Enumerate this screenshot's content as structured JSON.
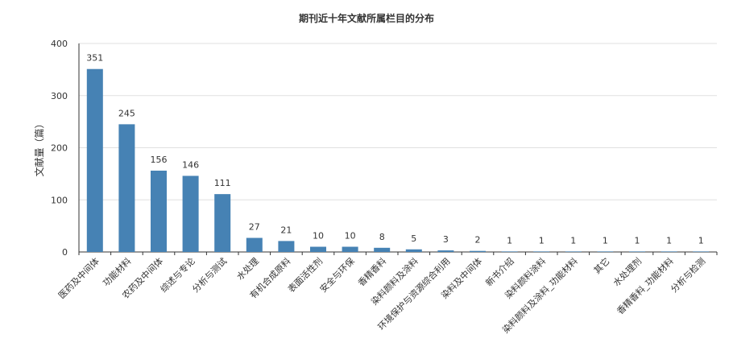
{
  "chart_data": {
    "type": "bar",
    "title": "期刊近十年文献所属栏目的分布",
    "xlabel": "",
    "ylabel": "文献量（篇）",
    "ylim": [
      0,
      400
    ],
    "yticks": [
      0,
      100,
      200,
      300,
      400
    ],
    "grid": true,
    "bar_color": "#4682b4",
    "categories": [
      "医药及中间体",
      "功能材料",
      "农药及中间体",
      "综述与专论",
      "分析与测试",
      "水处理",
      "有机合成原料",
      "表面活性剂",
      "安全与环保",
      "香精香料",
      "染料颜料及涂料",
      "环境保护与资源综合利用",
      "染料及中间体",
      "新书介绍",
      "染料颜料涂料",
      "染料颜料及涂料_功能材料",
      "其它",
      "水处理剂",
      "香精香料_功能材料",
      "分析与检测"
    ],
    "values": [
      351,
      245,
      156,
      146,
      111,
      27,
      21,
      10,
      10,
      8,
      5,
      3,
      2,
      1,
      1,
      1,
      1,
      1,
      1,
      1
    ]
  }
}
